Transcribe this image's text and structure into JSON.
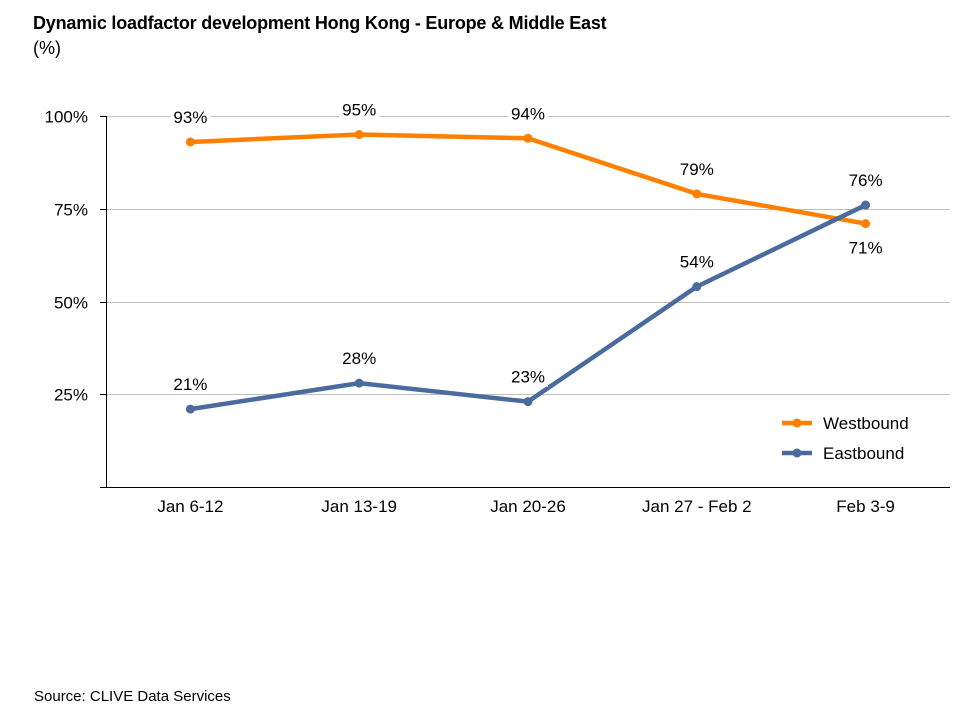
{
  "chart_data": {
    "type": "line",
    "title": "Dynamic loadfactor development Hong Kong - Europe & Middle East",
    "subtitle": "(%)",
    "xlabel": "",
    "ylabel": "",
    "categories": [
      "Jan 6-12",
      "Jan 13-19",
      "Jan 20-26",
      "Jan 27 - Feb 2",
      "Feb 3-9"
    ],
    "ylim": [
      0,
      100
    ],
    "yticks": [
      0,
      25,
      50,
      75,
      100
    ],
    "ytick_labels": [
      "",
      "25%",
      "50%",
      "75%",
      "100%"
    ],
    "grid": true,
    "legend_position": "bottom-right",
    "series": [
      {
        "name": "Westbound",
        "color": "#FF8000",
        "values": [
          93,
          95,
          94,
          79,
          71
        ],
        "labels": [
          "93%",
          "95%",
          "94%",
          "79%",
          "71%"
        ],
        "label_positions": [
          "above",
          "above",
          "above",
          "above",
          "below"
        ]
      },
      {
        "name": "Eastbound",
        "color": "#4A6B9D",
        "values": [
          21,
          28,
          23,
          54,
          76
        ],
        "labels": [
          "21%",
          "28%",
          "23%",
          "54%",
          "76%"
        ],
        "label_positions": [
          "above",
          "above",
          "above",
          "above",
          "above"
        ]
      }
    ],
    "source": "Source: CLIVE Data Services"
  }
}
